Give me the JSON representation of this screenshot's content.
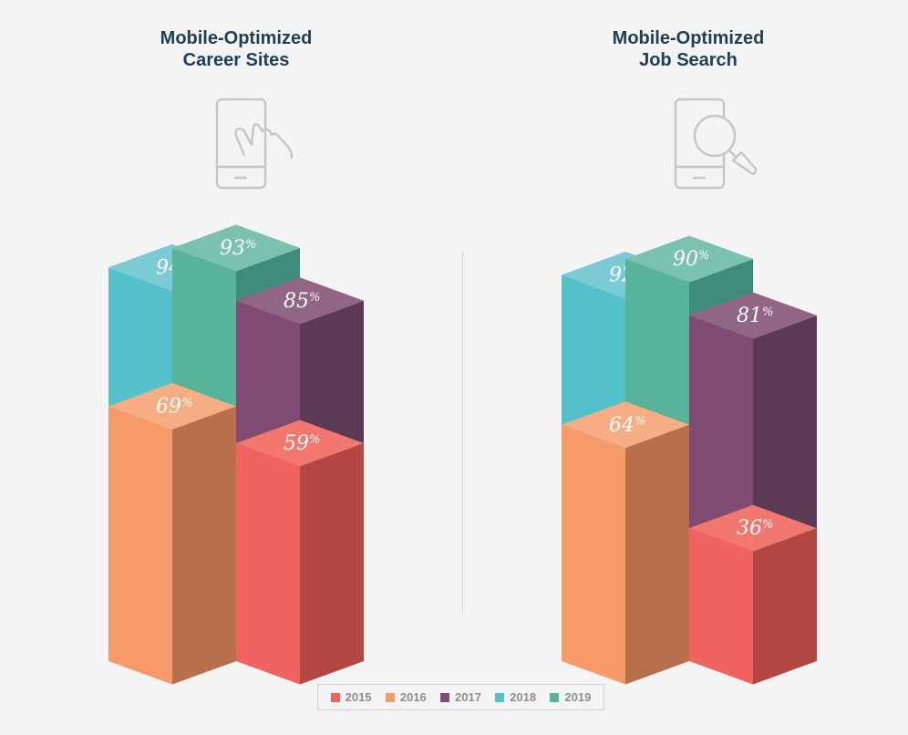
{
  "chart_data": [
    {
      "type": "bar",
      "title_lines": [
        "Mobile-Optimized",
        "Career Sites"
      ],
      "icon": "phone-touch-icon",
      "series": [
        {
          "name": "2015",
          "value": 59,
          "label": "59",
          "unit": "%"
        },
        {
          "name": "2016",
          "value": 69,
          "label": "69",
          "unit": "%"
        },
        {
          "name": "2017",
          "value": 85,
          "label": "85",
          "unit": "%"
        },
        {
          "name": "2018",
          "value": 94,
          "label": "94",
          "unit": "%"
        },
        {
          "name": "2019",
          "value": 93,
          "label": "93",
          "unit": "%"
        }
      ]
    },
    {
      "type": "bar",
      "title_lines": [
        "Mobile-Optimized",
        "Job Search"
      ],
      "icon": "phone-search-icon",
      "series": [
        {
          "name": "2015",
          "value": 36,
          "label": "36",
          "unit": "%"
        },
        {
          "name": "2016",
          "value": 64,
          "label": "64",
          "unit": "%"
        },
        {
          "name": "2017",
          "value": 81,
          "label": "81",
          "unit": "%"
        },
        {
          "name": "2018",
          "value": 92,
          "label": "92",
          "unit": "%"
        },
        {
          "name": "2019",
          "value": 90,
          "label": "90",
          "unit": "%"
        }
      ]
    }
  ],
  "legend": [
    {
      "label": "2015",
      "color": "#f06361"
    },
    {
      "label": "2016",
      "color": "#f79a6a"
    },
    {
      "label": "2017",
      "color": "#7f4b73"
    },
    {
      "label": "2018",
      "color": "#55c2cb"
    },
    {
      "label": "2019",
      "color": "#58b39b"
    }
  ],
  "colors": {
    "2015": {
      "front": "#f06361",
      "side": "#b34744",
      "top": "#f1776f"
    },
    "2016": {
      "front": "#f79a6a",
      "side": "#b8704c",
      "top": "#f6ad83"
    },
    "2017": {
      "front": "#7f4b73",
      "side": "#5c3955",
      "top": "#906684"
    },
    "2018": {
      "front": "#55c2cb",
      "side": "#3e9297",
      "top": "#7ccad4"
    },
    "2019": {
      "front": "#58b39b",
      "side": "#408c7a",
      "top": "#7bc2ae"
    }
  }
}
